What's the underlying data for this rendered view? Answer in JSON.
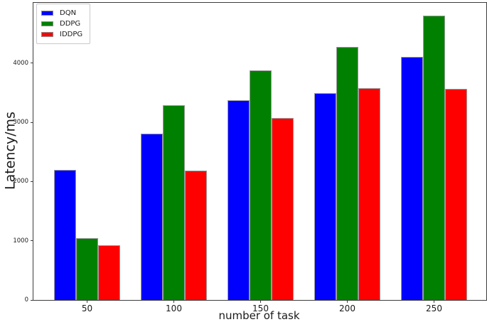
{
  "chart_data": {
    "type": "bar",
    "title": "",
    "xlabel": "number of task",
    "ylabel": "Latency/ms",
    "categories": [
      "50",
      "100",
      "150",
      "200",
      "250"
    ],
    "series": [
      {
        "name": "DQN",
        "color": "#0000ff",
        "values": [
          2200,
          2810,
          3370,
          3490,
          4100
        ]
      },
      {
        "name": "DDPG",
        "color": "#008000",
        "values": [
          1040,
          3290,
          3880,
          4270,
          4800
        ]
      },
      {
        "name": "IDDPG",
        "color": "#ff0000",
        "values": [
          930,
          2180,
          3070,
          3580,
          3570
        ]
      }
    ],
    "yticks": [
      "0",
      "1000",
      "2000",
      "3000",
      "4000"
    ],
    "ylim": [
      0,
      5016
    ],
    "grid": false,
    "legend_position": "upper-left",
    "bar_edge_color": "#9a9a9a",
    "axis_color": "#3c3c3c",
    "background_color": "#ffffff"
  }
}
